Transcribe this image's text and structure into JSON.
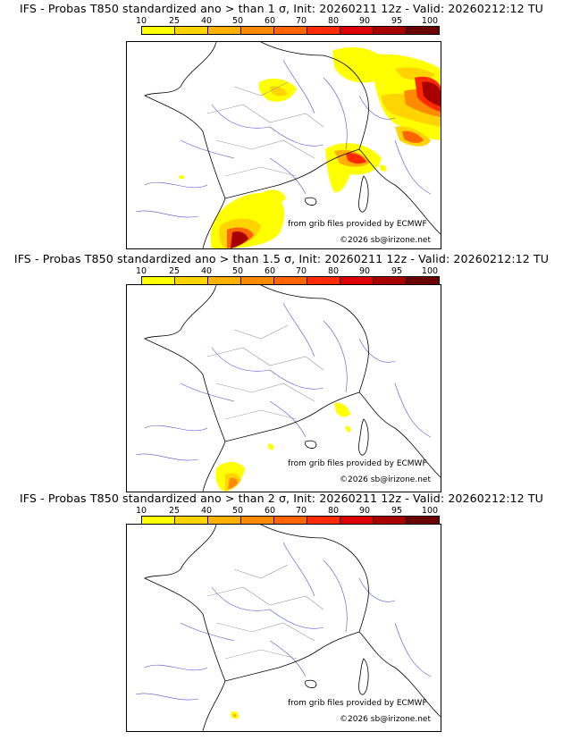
{
  "colorbar": {
    "ticks": [
      "10",
      "25",
      "40",
      "50",
      "60",
      "70",
      "80",
      "90",
      "95",
      "100"
    ],
    "colors": [
      "#ffff00",
      "#ffd400",
      "#ffb000",
      "#ff8c00",
      "#ff6400",
      "#ff2a00",
      "#e00000",
      "#a80000",
      "#6a0000"
    ]
  },
  "panels": [
    {
      "title": "IFS - Probas T850  standardized ano > than 1 σ, Init: 20260211 12z - Valid: 20260212:12 TU",
      "credit_grib": "from grib files provided by ECMWF",
      "credit_site": "©2026 sb@irizone.net"
    },
    {
      "title": "IFS - Probas T850  standardized ano > than 1.5 σ, Init: 20260211 12z - Valid: 20260212:12 TU",
      "credit_grib": "from grib files provided by ECMWF",
      "credit_site": "©2026 sb@irizone.net"
    },
    {
      "title": "IFS - Probas T850  standardized ano > than 2 σ, Init: 20260211 12z - Valid: 20260212:12 TU",
      "credit_grib": "from grib files provided by ECMWF",
      "credit_site": "©2026 sb@irizone.net"
    }
  ]
}
